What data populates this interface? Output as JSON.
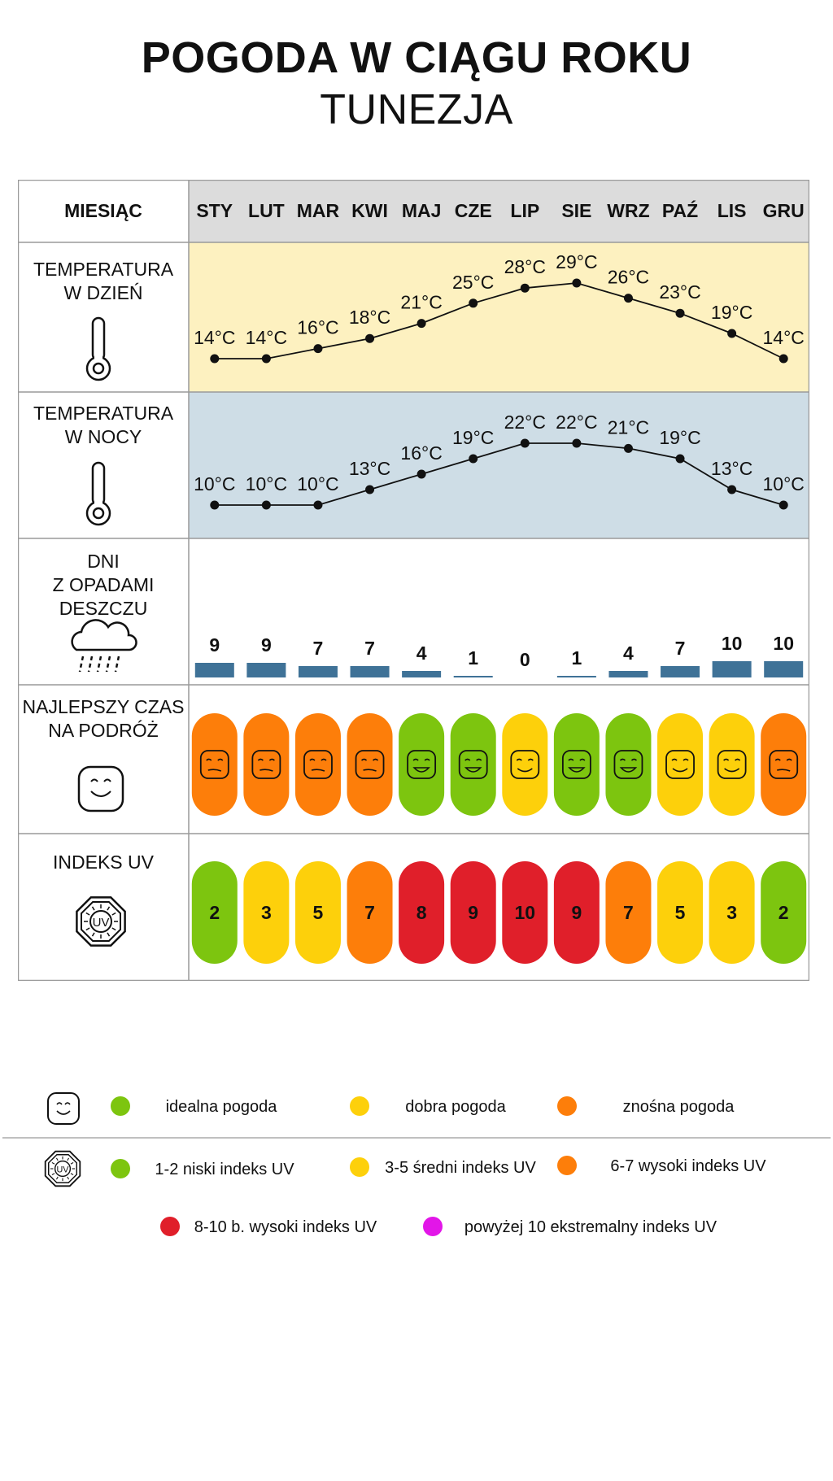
{
  "title": "POGODA W CIĄGU ROKU",
  "subtitle": "TUNEZJA",
  "chart_data": {
    "type": "table",
    "months": [
      "STY",
      "LUT",
      "MAR",
      "KWI",
      "MAJ",
      "CZE",
      "LIP",
      "SIE",
      "WRZ",
      "PAŹ",
      "LIS",
      "GRU"
    ],
    "rows": {
      "header": "MIESIĄC",
      "day_temp_label": [
        "TEMPERATURA",
        "W DZIEŃ"
      ],
      "night_temp_label": [
        "TEMPERATURA",
        "W NOCY"
      ],
      "rain_label": [
        "DNI",
        "Z OPADAMI",
        "DESZCZU"
      ],
      "best_label": [
        "NAJLEPSZY CZAS",
        "NA PODRÓŻ"
      ],
      "uv_label": "INDEKS UV"
    },
    "day_temp": [
      14,
      14,
      16,
      18,
      21,
      25,
      28,
      29,
      26,
      23,
      19,
      14
    ],
    "night_temp": [
      10,
      10,
      10,
      13,
      16,
      19,
      22,
      22,
      21,
      19,
      13,
      10
    ],
    "temp_unit": "°C",
    "rain_days": [
      9,
      9,
      7,
      7,
      4,
      1,
      0,
      1,
      4,
      7,
      10,
      10
    ],
    "best_time": [
      "znośna",
      "znośna",
      "znośna",
      "znośna",
      "idealna",
      "idealna",
      "dobra",
      "idealna",
      "idealna",
      "dobra",
      "dobra",
      "znośna"
    ],
    "uv_index": [
      2,
      3,
      5,
      7,
      8,
      9,
      10,
      9,
      7,
      5,
      3,
      2
    ]
  },
  "colors": {
    "ideal": "#7dc50f",
    "good": "#fdd00b",
    "tolerable": "#fd7e0a",
    "very_high": "#e01f2a",
    "extreme": "#e216e8",
    "day_bg": "#fdf1c0",
    "night_bg": "#cedde6",
    "header_bg": "#dcdcdc",
    "rain_bar": "#3f7297",
    "grid_line": "#9a9a9a"
  },
  "legend": {
    "best": [
      {
        "label": "idealna pogoda",
        "color": "ideal"
      },
      {
        "label": "dobra pogoda",
        "color": "good"
      },
      {
        "label": "znośna pogoda",
        "color": "tolerable"
      }
    ],
    "uv": [
      {
        "label": "1-2 niski indeks UV",
        "color": "ideal"
      },
      {
        "label": "3-5 średni indeks UV",
        "color": "good"
      },
      {
        "label": "6-7 wysoki indeks UV",
        "color": "tolerable"
      },
      {
        "label": "8-10 b. wysoki indeks UV",
        "color": "very_high"
      },
      {
        "label": "powyżej 10 ekstremalny indeks UV",
        "color": "extreme"
      }
    ]
  }
}
